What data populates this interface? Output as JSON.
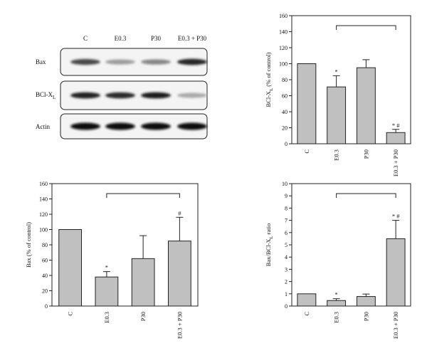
{
  "western_blot": {
    "lanes": [
      "C",
      "E0.3",
      "P30",
      "E0.3 + P30"
    ],
    "rows": [
      {
        "label": "Bax",
        "label_sub": "",
        "intensity": [
          0.72,
          0.35,
          0.45,
          0.88
        ]
      },
      {
        "label": "BCl-X",
        "label_sub": "L",
        "intensity": [
          0.9,
          0.85,
          0.92,
          0.3
        ]
      },
      {
        "label": "Actin",
        "label_sub": "",
        "intensity": [
          1.0,
          1.0,
          1.0,
          1.0
        ]
      }
    ]
  },
  "chart_data": [
    {
      "panel": "top-right",
      "type": "bar",
      "categories": [
        "C",
        "E0.3",
        "P30",
        "E0.3 + P30"
      ],
      "values": [
        100,
        71,
        95,
        14
      ],
      "errors": [
        0,
        14,
        10,
        4
      ],
      "annotations": [
        "",
        "*",
        "",
        "* #"
      ],
      "ylabel": "BCl-X",
      "ylabel_sub": "L",
      "ylabel_suffix": " (% of control)",
      "ylim": [
        0,
        160
      ],
      "yticks": [
        0,
        20,
        40,
        60,
        80,
        100,
        120,
        140,
        160
      ],
      "bracket": [
        1,
        3
      ],
      "grid": false,
      "bar_color": "#c0c0c0"
    },
    {
      "panel": "bottom-left",
      "type": "bar",
      "categories": [
        "C",
        "E0.3",
        "P30",
        "E0.3 + P30"
      ],
      "values": [
        100,
        38,
        62,
        85
      ],
      "errors": [
        0,
        7,
        30,
        31
      ],
      "annotations": [
        "",
        "*",
        "",
        "#"
      ],
      "ylabel": "Bax (% of control)",
      "ylabel_sub": "",
      "ylabel_suffix": "",
      "ylim": [
        0,
        160
      ],
      "yticks": [
        0,
        20,
        40,
        60,
        80,
        100,
        120,
        140,
        160
      ],
      "bracket": [
        1,
        3
      ],
      "grid": false,
      "bar_color": "#c0c0c0"
    },
    {
      "panel": "bottom-right",
      "type": "bar",
      "categories": [
        "C",
        "E0.3",
        "P30",
        "E0.3 + P30"
      ],
      "values": [
        1.0,
        0.45,
        0.78,
        5.5
      ],
      "errors": [
        0,
        0.15,
        0.2,
        1.5
      ],
      "annotations": [
        "",
        "*",
        "",
        "* #"
      ],
      "ylabel": "Bax/BCl-X",
      "ylabel_sub": "L",
      "ylabel_suffix": " ratio",
      "ylim": [
        0,
        10
      ],
      "yticks": [
        0,
        1,
        2,
        3,
        4,
        5,
        6,
        7,
        8,
        9,
        10
      ],
      "bracket": [
        1,
        3
      ],
      "grid": false,
      "bar_color": "#c0c0c0"
    }
  ]
}
